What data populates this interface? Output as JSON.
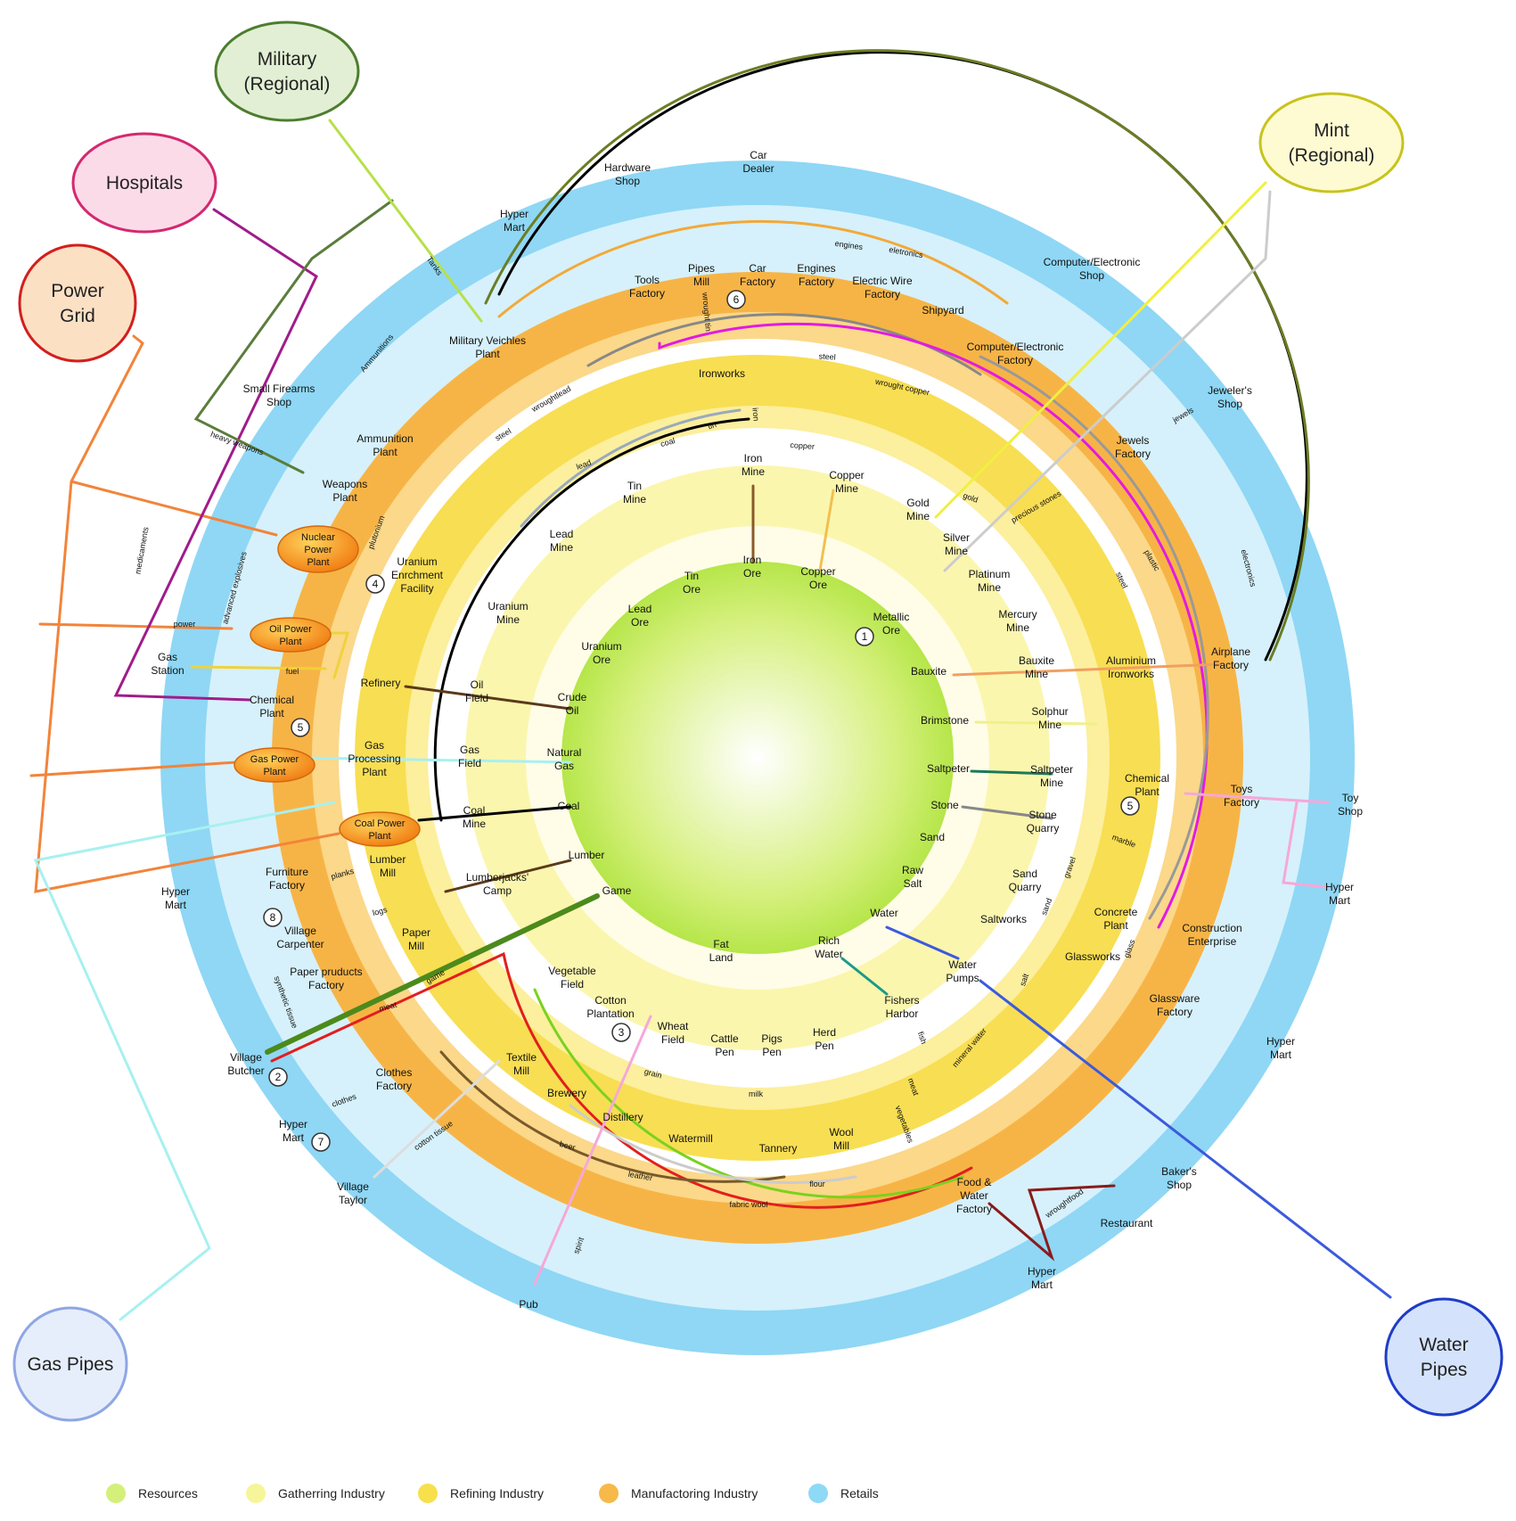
{
  "legend": [
    {
      "label": "Resources",
      "color": "#d4f07a"
    },
    {
      "label": "Gatherring Industry",
      "color": "#f6f59a"
    },
    {
      "label": "Refining Industry",
      "color": "#f8df4c"
    },
    {
      "label": "Manufactoring Industry",
      "color": "#f6b94a"
    },
    {
      "label": "Retails",
      "color": "#8ed9f6"
    }
  ],
  "ring_colors": {
    "outer": "#8fd8f5",
    "manufacturing": "#f7b446",
    "refining": "#f8de52",
    "gathering": "#fbf6ae",
    "center": "#b8e84a"
  },
  "external": [
    {
      "id": "military",
      "text": [
        "Military",
        "(Regional)"
      ],
      "stroke": "#4d7d2e",
      "fill": "#e2efd4"
    },
    {
      "id": "hospitals",
      "text": [
        "Hospitals"
      ],
      "stroke": "#d4286f",
      "fill": "#fbdbe8"
    },
    {
      "id": "power",
      "text": [
        "Power",
        "Grid"
      ],
      "stroke": "#d41e1e",
      "fill": "#fbe0c4"
    },
    {
      "id": "mint",
      "text": [
        "Mint",
        "(Regional)"
      ],
      "stroke": "#c8c31c",
      "fill": "#fefbd2"
    },
    {
      "id": "gaspipes",
      "text": [
        "Gas Pipes"
      ],
      "stroke": "#8fa6e4",
      "fill": "#e6eefb"
    },
    {
      "id": "waterpipes",
      "text": [
        "Water",
        "Pipes"
      ],
      "stroke": "#1e3cc8",
      "fill": "#d4e3fb"
    }
  ],
  "nodes": [
    {
      "id": "metallic_ore",
      "text": [
        "Metallic",
        "Ore"
      ]
    },
    {
      "id": "iron_ore",
      "text": [
        "Iron",
        "Ore"
      ]
    },
    {
      "id": "copper_ore",
      "text": [
        "Copper",
        "Ore"
      ]
    },
    {
      "id": "tin_ore",
      "text": [
        "Tin",
        "Ore"
      ]
    },
    {
      "id": "lead_ore",
      "text": [
        "Lead",
        "Ore"
      ]
    },
    {
      "id": "uranium_ore",
      "text": [
        "Uranium",
        "Ore"
      ]
    },
    {
      "id": "crude_oil",
      "text": [
        "Crude",
        "Oil"
      ]
    },
    {
      "id": "natural_gas",
      "text": [
        "Natural",
        "Gas"
      ]
    },
    {
      "id": "coal",
      "text": [
        "Coal"
      ]
    },
    {
      "id": "lumber",
      "text": [
        "Lumber"
      ]
    },
    {
      "id": "game",
      "text": [
        "Game"
      ]
    },
    {
      "id": "fat_land",
      "text": [
        "Fat",
        "Land"
      ]
    },
    {
      "id": "rich_water",
      "text": [
        "Rich",
        "Water"
      ]
    },
    {
      "id": "water",
      "text": [
        "Water"
      ]
    },
    {
      "id": "raw_salt",
      "text": [
        "Raw",
        "Salt"
      ]
    },
    {
      "id": "sand",
      "text": [
        "Sand"
      ]
    },
    {
      "id": "stone",
      "text": [
        "Stone"
      ]
    },
    {
      "id": "saltpeter",
      "text": [
        "Saltpeter"
      ]
    },
    {
      "id": "brimstone",
      "text": [
        "Brimstone"
      ]
    },
    {
      "id": "bauxite",
      "text": [
        "Bauxite"
      ]
    },
    {
      "id": "iron_mine",
      "text": [
        "Iron",
        "Mine"
      ]
    },
    {
      "id": "copper_mine",
      "text": [
        "Copper",
        "Mine"
      ]
    },
    {
      "id": "tin_mine",
      "text": [
        "Tin",
        "Mine"
      ]
    },
    {
      "id": "lead_mine",
      "text": [
        "Lead",
        "Mine"
      ]
    },
    {
      "id": "uranium_mine",
      "text": [
        "Uranium",
        "Mine"
      ]
    },
    {
      "id": "oil_field",
      "text": [
        "Oil",
        "Field"
      ]
    },
    {
      "id": "gas_field",
      "text": [
        "Gas",
        "Field"
      ]
    },
    {
      "id": "coal_mine",
      "text": [
        "Coal",
        "Mine"
      ]
    },
    {
      "id": "lumberjacks_camp",
      "text": [
        "Lumberjacks'",
        "Camp"
      ]
    },
    {
      "id": "vegetable_field",
      "text": [
        "Vegetable",
        "Field"
      ]
    },
    {
      "id": "cotton_plantation",
      "text": [
        "Cotton",
        "Plantation"
      ]
    },
    {
      "id": "wheat_field",
      "text": [
        "Wheat",
        "Field"
      ]
    },
    {
      "id": "cattle_pen",
      "text": [
        "Cattle",
        "Pen"
      ]
    },
    {
      "id": "pigs_pen",
      "text": [
        "Pigs",
        "Pen"
      ]
    },
    {
      "id": "herd_pen",
      "text": [
        "Herd",
        "Pen"
      ]
    },
    {
      "id": "fishers_harbor",
      "text": [
        "Fishers",
        "Harbor"
      ]
    },
    {
      "id": "water_pumps",
      "text": [
        "Water",
        "Pumps"
      ]
    },
    {
      "id": "saltworks",
      "text": [
        "Saltworks"
      ]
    },
    {
      "id": "sand_quarry",
      "text": [
        "Sand",
        "Quarry"
      ]
    },
    {
      "id": "stone_quarry",
      "text": [
        "Stone",
        "Quarry"
      ]
    },
    {
      "id": "saltpeter_mine",
      "text": [
        "Saltpeter",
        "Mine"
      ]
    },
    {
      "id": "solphur_mine",
      "text": [
        "Solphur",
        "Mine"
      ]
    },
    {
      "id": "bauxite_mine",
      "text": [
        "Bauxite",
        "Mine"
      ]
    },
    {
      "id": "mercury_mine",
      "text": [
        "Mercury",
        "Mine"
      ]
    },
    {
      "id": "platinum_mine",
      "text": [
        "Platinum",
        "Mine"
      ]
    },
    {
      "id": "silver_mine",
      "text": [
        "Silver",
        "Mine"
      ]
    },
    {
      "id": "gold_mine",
      "text": [
        "Gold",
        "Mine"
      ]
    },
    {
      "id": "ironworks",
      "text": [
        "Ironworks"
      ]
    },
    {
      "id": "uranium_enrichment",
      "text": [
        "Uranium",
        "Enrchment",
        "Facility"
      ]
    },
    {
      "id": "refinery",
      "text": [
        "Refinery"
      ]
    },
    {
      "id": "gas_processing",
      "text": [
        "Gas",
        "Processing",
        "Plant"
      ]
    },
    {
      "id": "lumber_mill",
      "text": [
        "Lumber",
        "Mill"
      ]
    },
    {
      "id": "paper_mill",
      "text": [
        "Paper",
        "Mill"
      ]
    },
    {
      "id": "textile_mill",
      "text": [
        "Textile",
        "Mill"
      ]
    },
    {
      "id": "brewery",
      "text": [
        "Brewery"
      ]
    },
    {
      "id": "distillery",
      "text": [
        "Distillery"
      ]
    },
    {
      "id": "watermill",
      "text": [
        "Watermill"
      ]
    },
    {
      "id": "tannery",
      "text": [
        "Tannery"
      ]
    },
    {
      "id": "wool_mill",
      "text": [
        "Wool",
        "Mill"
      ]
    },
    {
      "id": "glassworks",
      "text": [
        "Glassworks"
      ]
    },
    {
      "id": "concrete_plant",
      "text": [
        "Concrete",
        "Plant"
      ]
    },
    {
      "id": "chemical_plant_r",
      "text": [
        "Chemical",
        "Plant"
      ]
    },
    {
      "id": "aluminium_ironworks",
      "text": [
        "Aluminium",
        "Ironworks"
      ]
    },
    {
      "id": "jewels_factory",
      "text": [
        "Jewels",
        "Factory"
      ]
    },
    {
      "id": "computer_factory",
      "text": [
        "Computer/Electronic",
        "Factory"
      ]
    },
    {
      "id": "shipyard",
      "text": [
        "Shipyard"
      ]
    },
    {
      "id": "electric_wire",
      "text": [
        "Electric Wire",
        "Factory"
      ]
    },
    {
      "id": "engines_factory",
      "text": [
        "Engines",
        "Factory"
      ]
    },
    {
      "id": "car_factory",
      "text": [
        "Car",
        "Factory"
      ]
    },
    {
      "id": "pipes_mill",
      "text": [
        "Pipes",
        "Mill"
      ]
    },
    {
      "id": "tools_factory",
      "text": [
        "Tools",
        "Factory"
      ]
    },
    {
      "id": "military_vehicles",
      "text": [
        "Military Veichles",
        "Plant"
      ]
    },
    {
      "id": "ammunition_plant",
      "text": [
        "Ammunition",
        "Plant"
      ]
    },
    {
      "id": "weapons_plant",
      "text": [
        "Weapons",
        "Plant"
      ]
    },
    {
      "id": "chemical_plant_l",
      "text": [
        "Chemical",
        "Plant"
      ]
    },
    {
      "id": "furniture_factory",
      "text": [
        "Furniture",
        "Factory"
      ]
    },
    {
      "id": "village_carpenter",
      "text": [
        "Village",
        "Carpenter"
      ]
    },
    {
      "id": "paper_products",
      "text": [
        "Paper pruducts",
        "Factory"
      ]
    },
    {
      "id": "village_butcher",
      "text": [
        "Village",
        "Butcher"
      ]
    },
    {
      "id": "clothes_factory",
      "text": [
        "Clothes",
        "Factory"
      ]
    },
    {
      "id": "food_water_factory",
      "text": [
        "Food &",
        "Water",
        "Factory"
      ]
    },
    {
      "id": "glassware_factory",
      "text": [
        "Glassware",
        "Factory"
      ]
    },
    {
      "id": "construction",
      "text": [
        "Construction",
        "Enterprise"
      ]
    },
    {
      "id": "toys_factory",
      "text": [
        "Toys",
        "Factory"
      ]
    },
    {
      "id": "airplane_factory",
      "text": [
        "Airplane",
        "Factory"
      ]
    },
    {
      "id": "hyper_mart_top",
      "text": [
        "Hyper",
        "Mart"
      ]
    },
    {
      "id": "hardware_shop",
      "text": [
        "Hardware",
        "Shop"
      ]
    },
    {
      "id": "car_dealer",
      "text": [
        "Car",
        "Dealer"
      ]
    },
    {
      "id": "computer_shop",
      "text": [
        "Computer/Electronic",
        "Shop"
      ]
    },
    {
      "id": "jewelers_shop",
      "text": [
        "Jeweler's",
        "Shop"
      ]
    },
    {
      "id": "toy_shop",
      "text": [
        "Toy",
        "Shop"
      ]
    },
    {
      "id": "hyper_mart_right",
      "text": [
        "Hyper",
        "Mart"
      ]
    },
    {
      "id": "hyper_mart_glass",
      "text": [
        "Hyper",
        "Mart"
      ]
    },
    {
      "id": "bakers_shop",
      "text": [
        "Baker's",
        "Shop"
      ]
    },
    {
      "id": "restaurant",
      "text": [
        "Restaurant"
      ]
    },
    {
      "id": "hyper_mart_bottom",
      "text": [
        "Hyper",
        "Mart"
      ]
    },
    {
      "id": "pub",
      "text": [
        "Pub"
      ]
    },
    {
      "id": "village_taylor",
      "text": [
        "Village",
        "Taylor"
      ]
    },
    {
      "id": "hyper_mart_clothes",
      "text": [
        "Hyper",
        "Mart"
      ]
    },
    {
      "id": "hyper_mart_left",
      "text": [
        "Hyper",
        "Mart"
      ]
    },
    {
      "id": "gas_station",
      "text": [
        "Gas",
        "Station"
      ]
    },
    {
      "id": "small_firearms",
      "text": [
        "Small Firearms",
        "Shop"
      ]
    }
  ],
  "plants": [
    {
      "id": "nuclear",
      "text": [
        "Nuclear",
        "Power",
        "Plant"
      ]
    },
    {
      "id": "oil",
      "text": [
        "Oil Power",
        "Plant"
      ]
    },
    {
      "id": "gas",
      "text": [
        "Gas Power",
        "Plant"
      ]
    },
    {
      "id": "coal",
      "text": [
        "Coal Power",
        "Plant"
      ]
    }
  ],
  "badges": [
    "1",
    "2",
    "3",
    "4",
    "5",
    "5",
    "6",
    "7",
    "8"
  ],
  "link_labels": [
    "engines",
    "eletronics",
    "steel",
    "wrought copper",
    "wrought tin",
    "copper",
    "iron",
    "tin",
    "coal",
    "lead",
    "steel",
    "wroughtlead",
    "Tanks",
    "Ammunitions",
    "heavy weapons",
    "medicaments",
    "advanced explosives",
    "plutonium",
    "power",
    "fuel",
    "planks",
    "logs",
    "game",
    "meat",
    "synthetic tissue",
    "clothes",
    "cotton tissue",
    "beer",
    "leather",
    "fabric wool",
    "flour",
    "milk",
    "grain",
    "spirit",
    "vegetables",
    "meat",
    "fish",
    "mineral water",
    "salt",
    "sand",
    "gravel",
    "marble",
    "glass",
    "steel",
    "plastic",
    "electronics",
    "precious stones",
    "gold",
    "jewels",
    "wroughtfood"
  ]
}
